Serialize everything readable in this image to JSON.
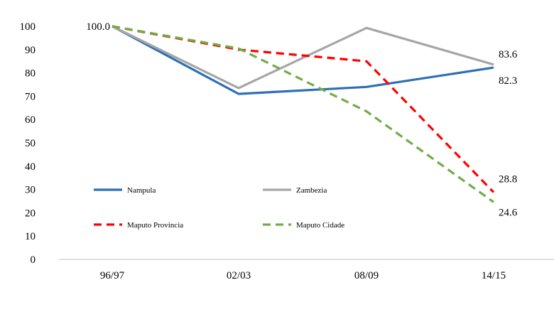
{
  "chart_data": {
    "type": "line",
    "categories": [
      "96/97",
      "02/03",
      "08/09",
      "14/15"
    ],
    "ylim": [
      0,
      100
    ],
    "yticks": [
      "0",
      "10",
      "20",
      "30",
      "40",
      "50",
      "60",
      "70",
      "80",
      "90",
      "100"
    ],
    "grid": false,
    "legend_position": "inside-center-left",
    "series": [
      {
        "name": "Nampula",
        "values": [
          100,
          71,
          74,
          82.3
        ],
        "color": "#2e6fb5",
        "dash": false
      },
      {
        "name": "Zambezia",
        "values": [
          100,
          73.5,
          99.3,
          83.6
        ],
        "color": "#a6a6a6",
        "dash": false
      },
      {
        "name": "Maputo Provincia",
        "values": [
          100,
          90,
          85,
          28.8
        ],
        "color": "#ff0000",
        "dash": true
      },
      {
        "name": "Maputo Cidade",
        "values": [
          100,
          90.5,
          63.5,
          24.6
        ],
        "color": "#70ad47",
        "dash": true
      }
    ],
    "data_labels": [
      {
        "series": 0,
        "index": 0,
        "text": "100.0"
      },
      {
        "series": 1,
        "index": 3,
        "text": "83.6"
      },
      {
        "series": 0,
        "index": 3,
        "text": "82.3"
      },
      {
        "series": 2,
        "index": 3,
        "text": "28.8"
      },
      {
        "series": 3,
        "index": 3,
        "text": "24.6"
      }
    ]
  }
}
